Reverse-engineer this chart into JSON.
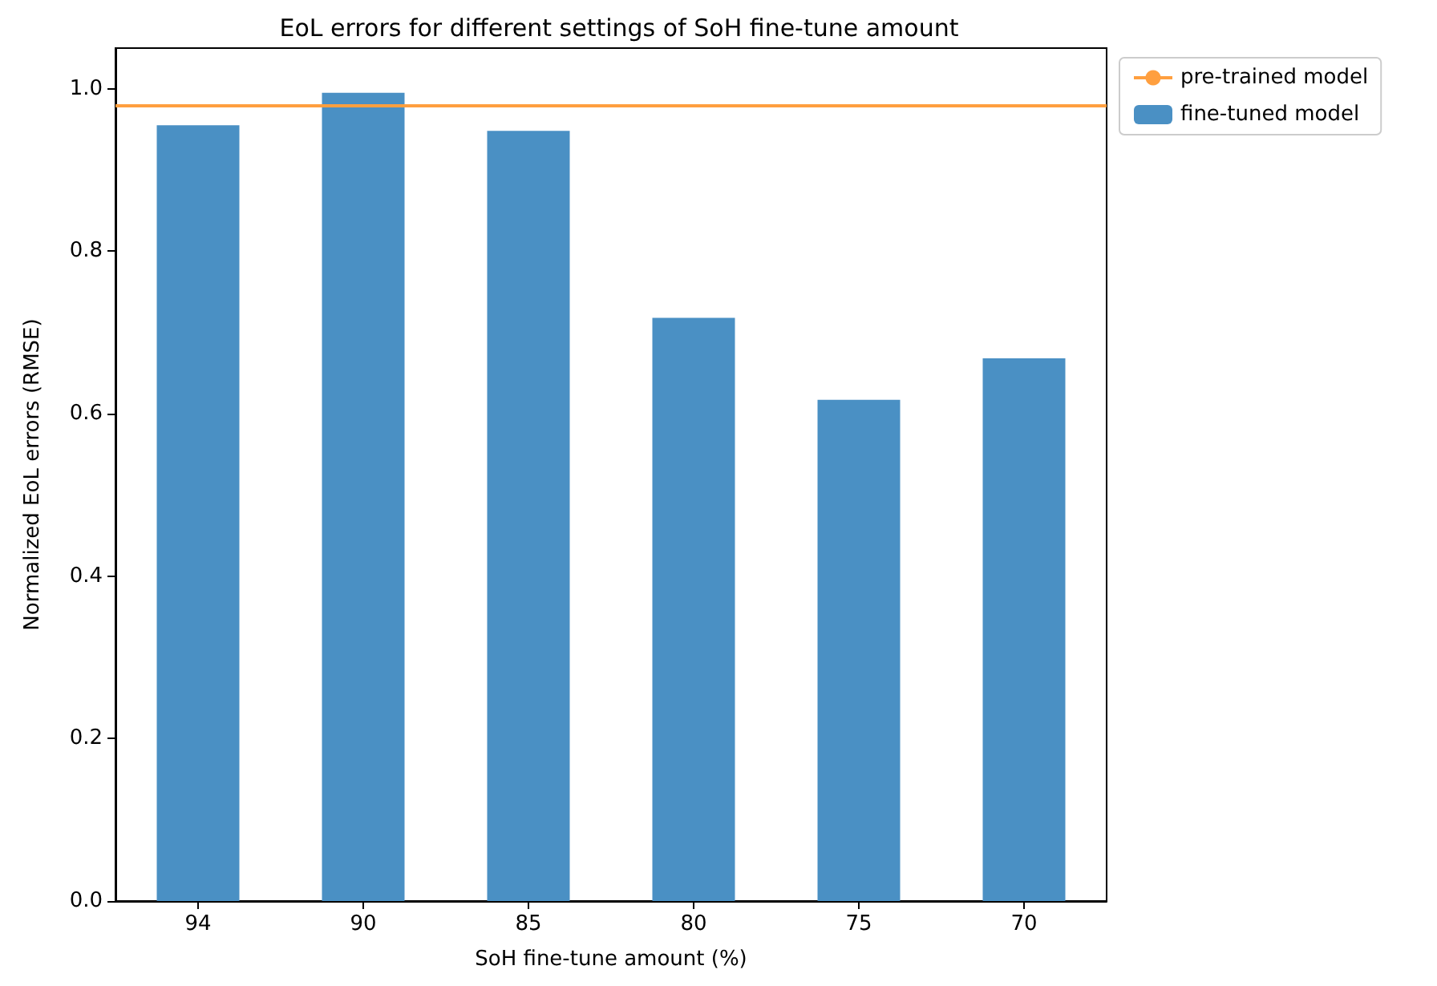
{
  "chart_data": {
    "type": "bar",
    "title": "EoL errors for different settings of SoH fine-tune amount",
    "xlabel": "SoH fine-tune amount (%)",
    "ylabel": "Normalized EoL errors (RMSE)",
    "categories": [
      "94",
      "90",
      "85",
      "80",
      "75",
      "70"
    ],
    "series": [
      {
        "name": "fine-tuned model",
        "color": "#4a90c4",
        "values": [
          0.955,
          0.995,
          0.948,
          0.718,
          0.617,
          0.668
        ]
      }
    ],
    "ref_lines": [
      {
        "axis": "y",
        "value": 0.98,
        "label": "pre-trained model",
        "color": "#ff9f3f"
      }
    ],
    "ylim": [
      0,
      1.05
    ],
    "yticks": [
      {
        "value": 0,
        "label": "0.0"
      },
      {
        "value": 0.2,
        "label": "0.2"
      },
      {
        "value": 0.4,
        "label": "0.4"
      },
      {
        "value": 0.6,
        "label": "0.6"
      },
      {
        "value": 0.8,
        "label": "0.8"
      },
      {
        "value": 1,
        "label": "1.0"
      }
    ],
    "grid": false,
    "legend": "top right"
  }
}
